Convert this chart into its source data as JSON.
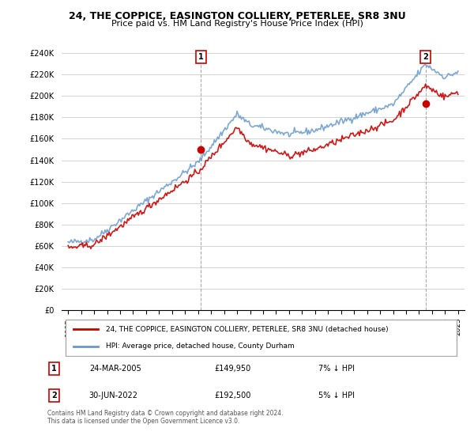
{
  "title1": "24, THE COPPICE, EASINGTON COLLIERY, PETERLEE, SR8 3NU",
  "title2": "Price paid vs. HM Land Registry's House Price Index (HPI)",
  "ylabel": "",
  "xlabel": "",
  "ylim": [
    0,
    240000
  ],
  "yticks": [
    0,
    20000,
    40000,
    60000,
    80000,
    100000,
    120000,
    140000,
    160000,
    180000,
    200000,
    220000,
    240000
  ],
  "sale1_date": "24-MAR-2005",
  "sale1_price": 149950,
  "sale1_label": "£149,950",
  "sale1_pct": "7% ↓ HPI",
  "sale2_date": "30-JUN-2022",
  "sale2_price": 192500,
  "sale2_label": "£192,500",
  "sale2_pct": "5% ↓ HPI",
  "legend_line1": "24, THE COPPICE, EASINGTON COLLIERY, PETERLEE, SR8 3NU (detached house)",
  "legend_line2": "HPI: Average price, detached house, County Durham",
  "footnote": "Contains HM Land Registry data © Crown copyright and database right 2024.\nThis data is licensed under the Open Government Licence v3.0.",
  "red_color": "#cc0000",
  "blue_color": "#6699cc",
  "background_color": "#ffffff",
  "grid_color": "#cccccc"
}
